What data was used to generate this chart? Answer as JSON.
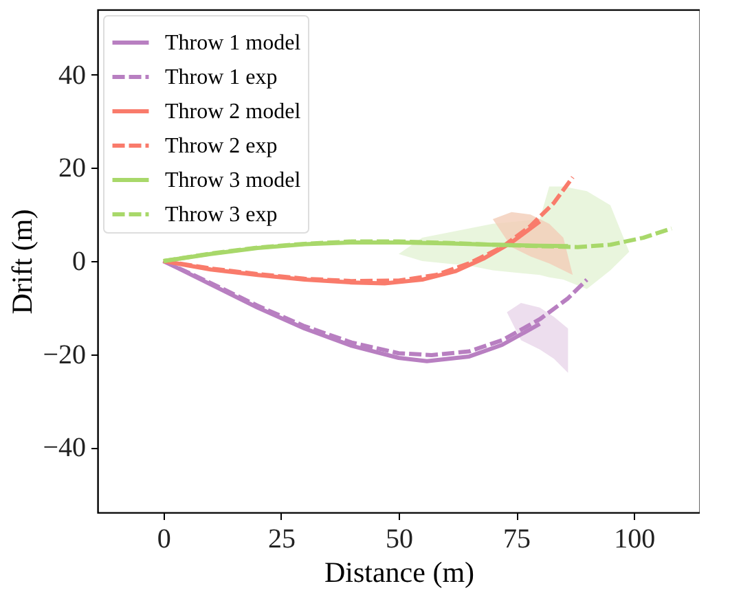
{
  "chart_data": {
    "type": "line",
    "xlabel": "Distance (m)",
    "ylabel": "Drift (m)",
    "xlim": [
      -14,
      114
    ],
    "ylim": [
      -54,
      54
    ],
    "xticks": [
      0,
      25,
      50,
      75,
      100
    ],
    "yticks": [
      -40,
      -20,
      0,
      20,
      40
    ],
    "grid": false,
    "legend": "top left",
    "marker": "none",
    "series": [
      {
        "type": "line",
        "color": "#e4f3d4",
        "x": [
          50,
          55,
          60,
          65,
          70,
          75,
          80,
          82,
          85,
          90,
          95,
          99
        ],
        "values": [
          null,
          null,
          null,
          null,
          null,
          null,
          null,
          null,
          null,
          null,
          null,
          null
        ],
        "lower": [
          1.5,
          0,
          -0.5,
          -1,
          -2,
          -2.5,
          -3,
          -3.5,
          -4,
          -6,
          -2,
          2
        ],
        "upper": [
          1.5,
          5,
          6,
          7,
          8,
          8.5,
          9,
          16,
          16,
          15,
          12,
          2
        ]
      },
      {
        "type": "line",
        "color": "#f3cdb8",
        "x": [
          70,
          74,
          78,
          82,
          85,
          87
        ],
        "values": [
          null,
          null,
          null,
          null,
          null,
          null
        ],
        "lower": [
          9,
          3,
          1,
          -0.5,
          -2,
          -3
        ],
        "upper": [
          9,
          10.5,
          10,
          8,
          5,
          -3
        ]
      },
      {
        "type": "line",
        "color": "#e8d6ea",
        "x": [
          73,
          76,
          80,
          83,
          86
        ],
        "values": [
          null,
          null,
          null,
          null,
          null
        ],
        "lower": [
          -11,
          -17,
          -19,
          -21,
          -24
        ],
        "upper": [
          -11,
          -9,
          -10,
          -12,
          -14.5
        ]
      },
      {
        "name": "Throw 1 model",
        "color": "#b87fc1",
        "line_style": "solid",
        "x": [
          0,
          10,
          20,
          30,
          40,
          50,
          56,
          65,
          72,
          80
        ],
        "values": [
          0,
          -5,
          -10,
          -14.5,
          -18.2,
          -20.8,
          -21.5,
          -20.5,
          -18,
          -13.5
        ]
      },
      {
        "name": "Throw 1 exp",
        "color": "#b87fc1",
        "line_style": "dashed",
        "x": [
          0,
          10,
          20,
          30,
          40,
          50,
          57,
          65,
          72,
          80,
          86,
          90
        ],
        "values": [
          0,
          -4.7,
          -9.6,
          -14,
          -17.5,
          -19.8,
          -20.2,
          -19.4,
          -17,
          -12.5,
          -8,
          -4
        ]
      },
      {
        "name": "Throw 2 model",
        "color": "#f97b6b",
        "line_style": "solid",
        "x": [
          0,
          10,
          20,
          30,
          40,
          47,
          55,
          62,
          68,
          74,
          80
        ],
        "values": [
          0,
          -1.8,
          -3,
          -4,
          -4.6,
          -4.8,
          -4,
          -2.2,
          0.5,
          4,
          8.5
        ]
      },
      {
        "name": "Throw 2 exp",
        "color": "#f97b6b",
        "line_style": "dashed",
        "x": [
          0,
          10,
          20,
          30,
          40,
          50,
          58,
          65,
          72,
          78,
          83,
          87
        ],
        "values": [
          0,
          -1.6,
          -2.8,
          -3.8,
          -4.3,
          -4.2,
          -3,
          -0.5,
          3,
          7.5,
          12.5,
          18
        ]
      },
      {
        "name": "Throw 3 model",
        "color": "#a8d86a",
        "line_style": "solid",
        "x": [
          0,
          10,
          20,
          30,
          40,
          50,
          60,
          70,
          80,
          86
        ],
        "values": [
          0,
          1.5,
          2.8,
          3.6,
          4,
          4,
          3.8,
          3.5,
          3.3,
          3.2
        ]
      },
      {
        "name": "Throw 3 exp",
        "color": "#a8d86a",
        "line_style": "dashed",
        "x": [
          0,
          10,
          20,
          30,
          40,
          50,
          60,
          70,
          80,
          88,
          95,
          102,
          108
        ],
        "values": [
          0,
          1.6,
          2.9,
          3.7,
          4.2,
          4.2,
          3.9,
          3.5,
          3.2,
          3,
          3.5,
          5,
          7
        ]
      }
    ]
  }
}
